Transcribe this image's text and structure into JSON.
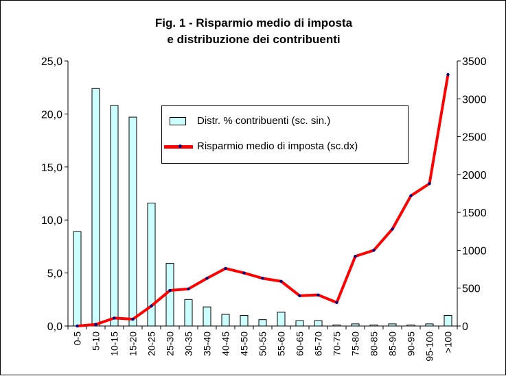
{
  "chart_data": {
    "type": "bar",
    "title_line1": "Fig. 1 - Risparmio medio di imposta",
    "title_line2": "e distribuzione dei contribuenti",
    "categories": [
      "0-5",
      "5-10",
      "10-15",
      "15-20",
      "20-25",
      "25-30",
      "30-35",
      "35-40",
      "40-45",
      "45-50",
      "50-55",
      "55-60",
      "60-65",
      "65-70",
      "70-75",
      "75-80",
      "80-85",
      "85-90",
      "90-95",
      "95-100",
      ">100"
    ],
    "series": [
      {
        "name": "Distr. % contribuenti (sc. sin.)",
        "type": "bar",
        "axis": "left",
        "values": [
          8.9,
          22.4,
          20.8,
          19.7,
          11.6,
          5.9,
          2.5,
          1.8,
          1.1,
          1.0,
          0.6,
          1.3,
          0.5,
          0.5,
          0.1,
          0.2,
          0.1,
          0.2,
          0.1,
          0.2,
          1.0
        ]
      },
      {
        "name": "Risparmio medio di imposta (sc.dx)",
        "type": "line",
        "axis": "right",
        "values": [
          0,
          20,
          105,
          90,
          265,
          470,
          490,
          630,
          760,
          700,
          630,
          590,
          400,
          410,
          310,
          920,
          1000,
          1280,
          1720,
          1880,
          3320
        ]
      }
    ],
    "y_left": {
      "min": 0,
      "max": 25,
      "ticks": [
        "0,0",
        "5,0",
        "10,0",
        "15,0",
        "20,0",
        "25,0"
      ],
      "tick_values": [
        0,
        5,
        10,
        15,
        20,
        25
      ]
    },
    "y_right": {
      "min": 0,
      "max": 3500,
      "ticks": [
        "0",
        "500",
        "1000",
        "1500",
        "2000",
        "2500",
        "3000",
        "3500"
      ],
      "tick_values": [
        0,
        500,
        1000,
        1500,
        2000,
        2500,
        3000,
        3500
      ]
    },
    "grid": false,
    "legend_placement": "center-left inside plot",
    "colors": {
      "bar_fill": "#ccffff",
      "bar_stroke": "#000000",
      "line": "#ff0000",
      "marker": "#000080"
    }
  }
}
